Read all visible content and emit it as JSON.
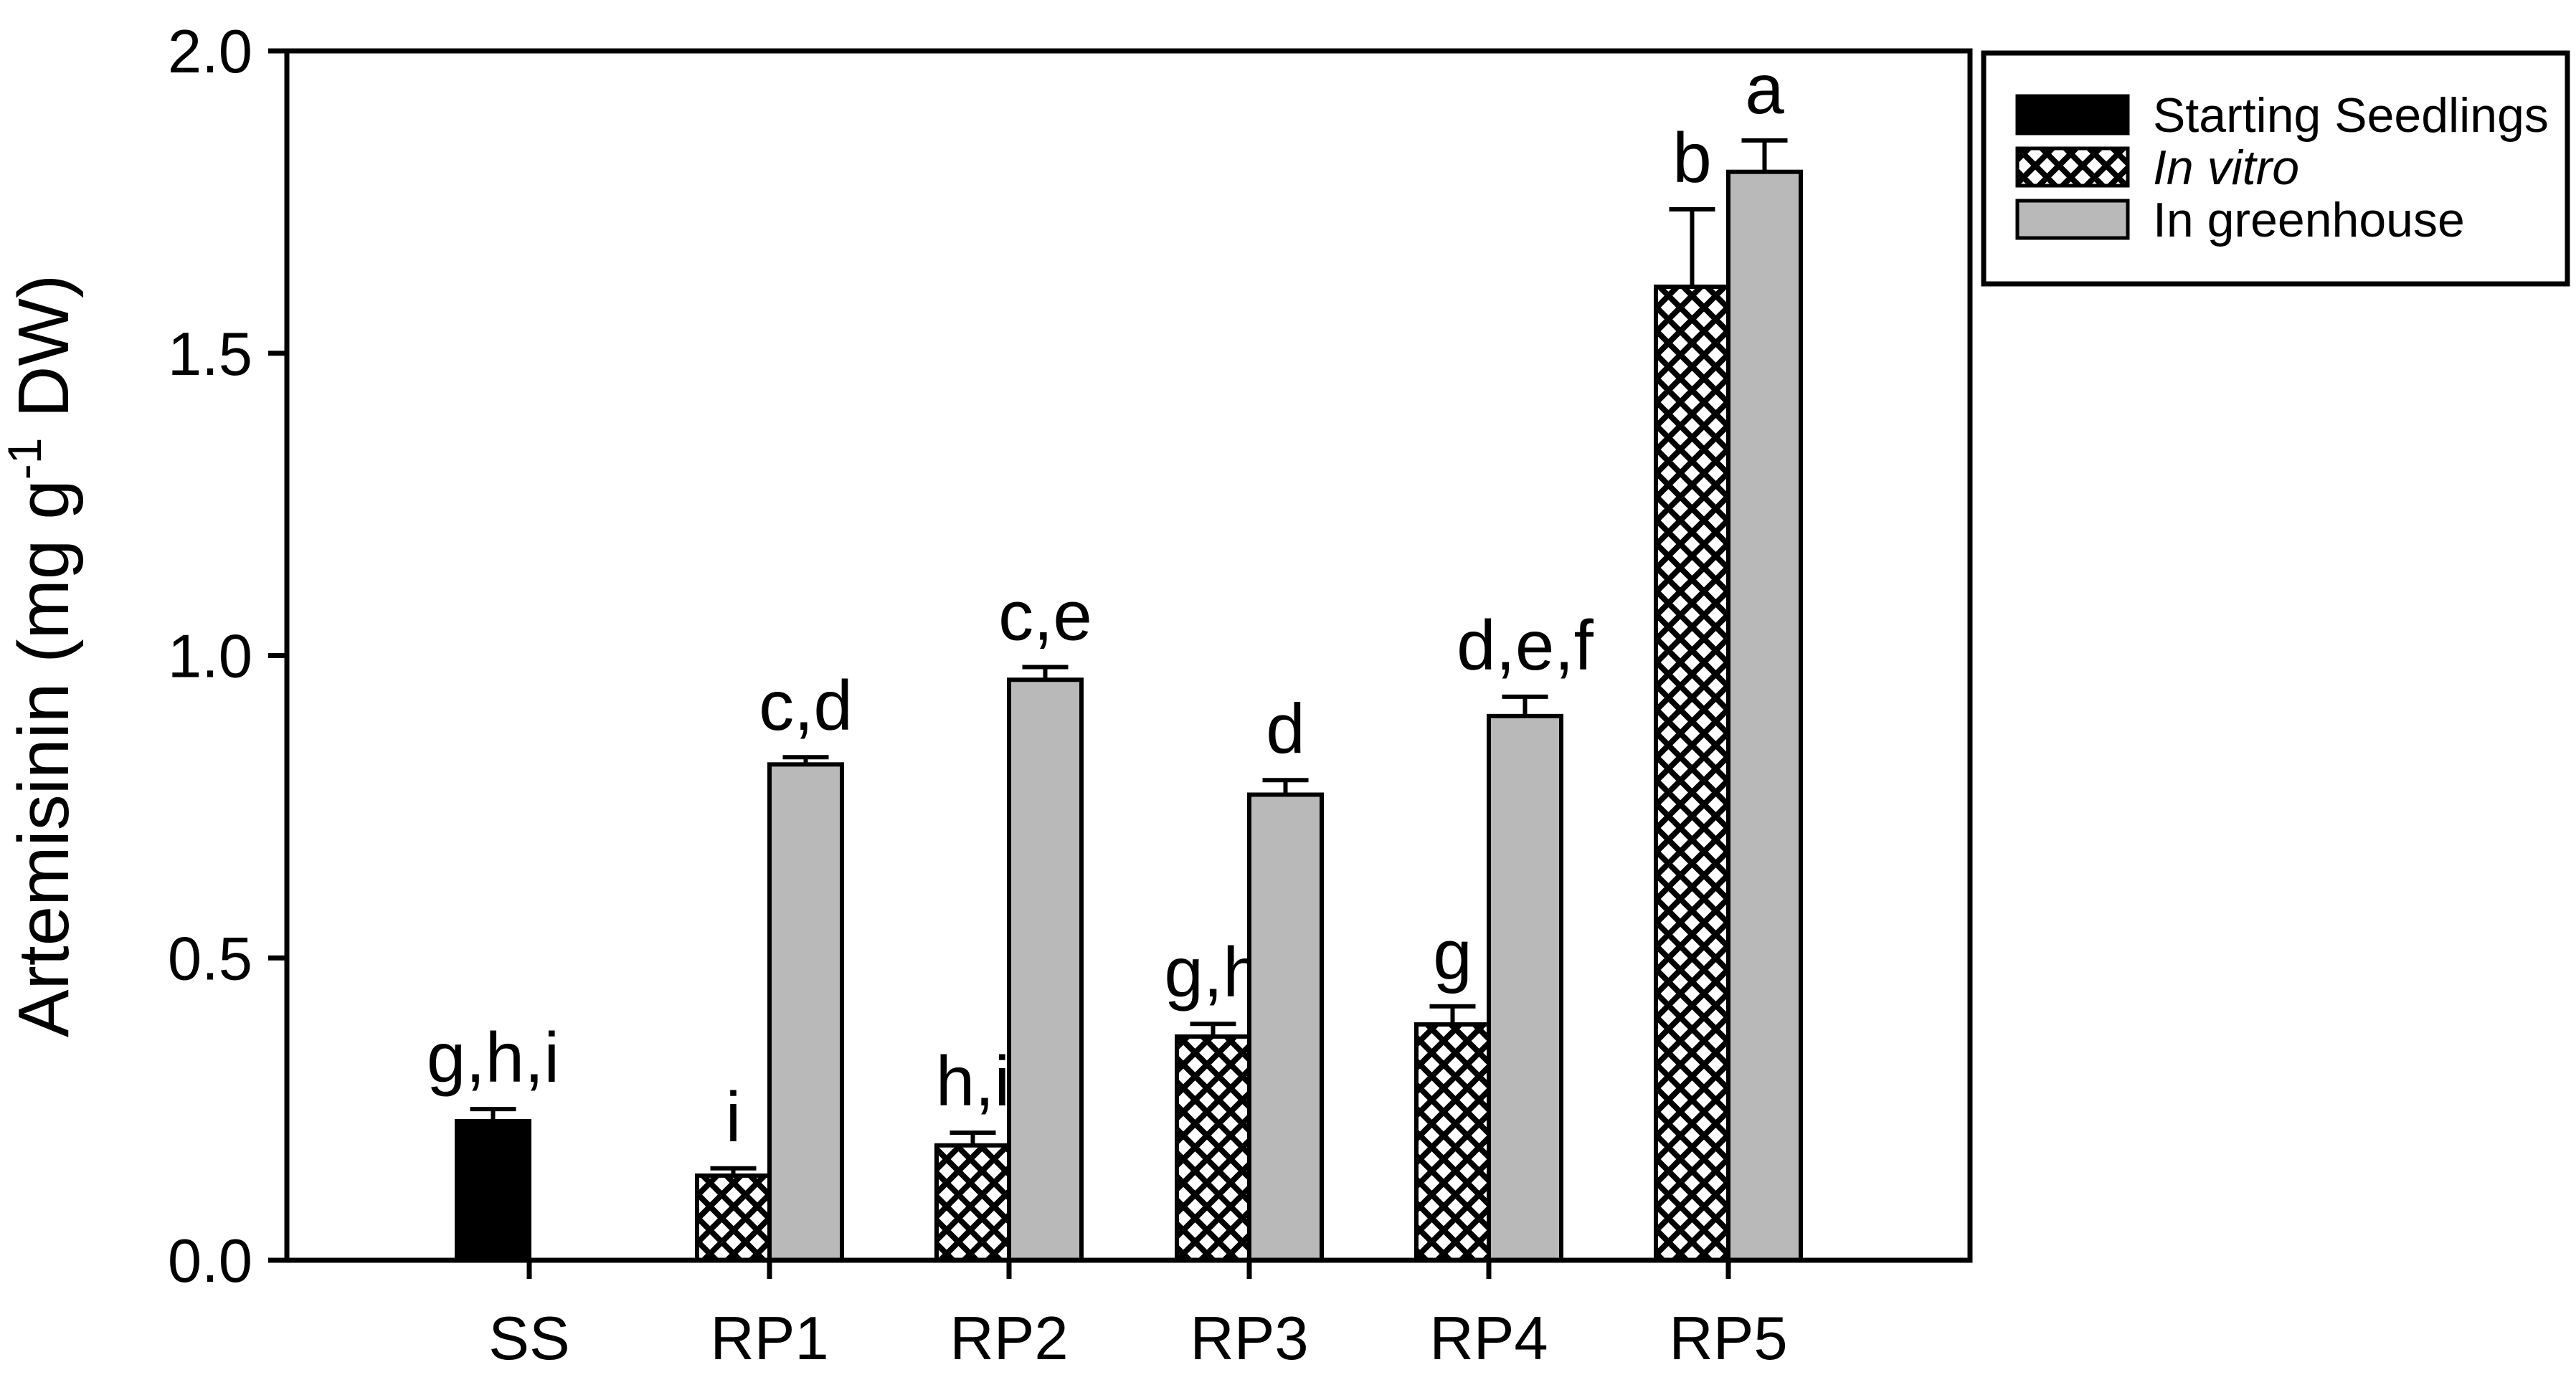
{
  "chart_data": {
    "type": "bar",
    "title": "",
    "ylabel": {
      "prefix": "Artemisinin (mg g",
      "superscript": "-1",
      "suffix": " DW)"
    },
    "ylim": [
      0.0,
      2.0
    ],
    "ytick_values": [
      0.0,
      0.5,
      1.0,
      1.5,
      2.0
    ],
    "ytick_labels": [
      "0.0",
      "0.5",
      "1.0",
      "1.5",
      "2.0"
    ],
    "categories": [
      "SS",
      "RP1",
      "RP2",
      "RP3",
      "RP4",
      "RP5"
    ],
    "grid": false,
    "legend_position": "top-right",
    "colors": {
      "black": "#000000",
      "gray": "#b9b9b9",
      "background": "#ffffff"
    },
    "series": [
      {
        "name": "Starting Seedlings",
        "style": "solid-black",
        "italic": false,
        "slot": "left",
        "values": [
          0.23,
          null,
          null,
          null,
          null,
          null
        ],
        "errors": [
          0.02,
          null,
          null,
          null,
          null,
          null
        ],
        "letters": [
          "g,h,i",
          null,
          null,
          null,
          null,
          null
        ]
      },
      {
        "name": "In vitro",
        "style": "crosshatch",
        "italic": true,
        "slot": "left",
        "values": [
          null,
          0.14,
          0.19,
          0.37,
          0.39,
          1.61
        ],
        "errors": [
          null,
          0.012,
          0.021,
          0.021,
          0.03,
          0.128
        ],
        "letters": [
          null,
          "i",
          "h,i",
          "g,h",
          "g",
          "b"
        ]
      },
      {
        "name": "In greenhouse",
        "style": "solid-gray",
        "italic": false,
        "slot": "right",
        "values": [
          null,
          0.82,
          0.96,
          0.77,
          0.9,
          1.8
        ],
        "errors": [
          null,
          0.012,
          0.021,
          0.024,
          0.032,
          0.052
        ],
        "letters": [
          null,
          "c,d",
          "c,e",
          "d",
          "d,e,f",
          "a"
        ]
      }
    ]
  }
}
